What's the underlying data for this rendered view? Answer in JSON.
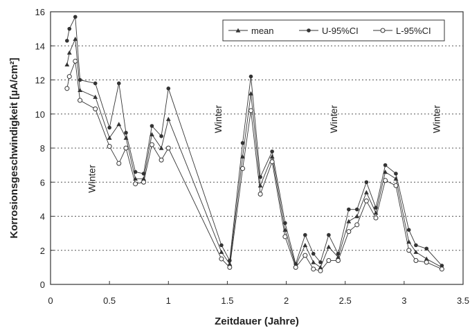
{
  "chart_data": {
    "type": "line",
    "title": "",
    "xlabel": "Zeitdauer (Jahre)",
    "ylabel": "Korrosionsgeschwindigkeit [µA/cm²]",
    "xlim": [
      0,
      3.5
    ],
    "ylim": [
      0,
      16
    ],
    "x_ticks": [
      0,
      0.5,
      1,
      1.5,
      2,
      2.5,
      3,
      3.5
    ],
    "x_tick_labels": [
      "0",
      "0.5",
      "1",
      "1.5",
      "2",
      "2.5",
      "3",
      "3.5"
    ],
    "y_ticks": [
      0,
      2,
      4,
      6,
      8,
      10,
      12,
      14,
      16
    ],
    "y_tick_labels": [
      "0",
      "2",
      "4",
      "6",
      "8",
      "10",
      "12",
      "14",
      "16"
    ],
    "grid": "horizontal-dotted",
    "legend_position": "top-right",
    "x": [
      0.14,
      0.16,
      0.21,
      0.25,
      0.38,
      0.5,
      0.58,
      0.64,
      0.72,
      0.79,
      0.86,
      0.94,
      1.0,
      1.45,
      1.52,
      1.63,
      1.7,
      1.78,
      1.88,
      1.99,
      2.08,
      2.16,
      2.23,
      2.29,
      2.36,
      2.44,
      2.53,
      2.6,
      2.68,
      2.76,
      2.84,
      2.93,
      3.04,
      3.1,
      3.19,
      3.32
    ],
    "series": [
      {
        "name": "mean",
        "marker": "triangle",
        "values": [
          12.9,
          13.6,
          14.4,
          11.4,
          11.0,
          8.6,
          9.4,
          8.6,
          6.2,
          6.2,
          8.8,
          8.0,
          9.7,
          1.9,
          1.2,
          7.5,
          11.2,
          5.8,
          7.5,
          3.2,
          1.1,
          2.3,
          1.3,
          1.0,
          2.2,
          1.6,
          3.7,
          4.0,
          5.4,
          4.2,
          6.6,
          6.2,
          2.5,
          1.9,
          1.5,
          1.0
        ]
      },
      {
        "name": "U-95%CI",
        "marker": "filled-circle",
        "values": [
          14.3,
          15.0,
          15.7,
          12.0,
          11.8,
          9.2,
          11.8,
          8.9,
          6.6,
          6.5,
          9.3,
          8.7,
          11.5,
          2.3,
          1.4,
          8.3,
          12.2,
          6.3,
          7.8,
          3.6,
          1.2,
          2.9,
          1.8,
          1.3,
          2.9,
          1.8,
          4.4,
          4.4,
          6.0,
          4.5,
          7.0,
          6.5,
          3.2,
          2.3,
          2.1,
          1.1
        ]
      },
      {
        "name": "L-95%CI",
        "marker": "open-circle",
        "values": [
          11.5,
          12.2,
          13.1,
          10.8,
          10.3,
          8.1,
          7.1,
          8.0,
          5.9,
          6.0,
          8.2,
          7.3,
          8.0,
          1.5,
          1.0,
          6.8,
          10.2,
          5.3,
          7.2,
          2.8,
          1.0,
          1.7,
          0.9,
          0.8,
          1.4,
          1.4,
          3.1,
          3.5,
          4.9,
          3.9,
          6.1,
          5.8,
          2.0,
          1.4,
          1.3,
          0.9
        ]
      }
    ],
    "annotations": [
      {
        "text": "Winter",
        "x": 0.38,
        "y": 6.2
      },
      {
        "text": "Winter",
        "x": 1.45,
        "y": 9.7
      },
      {
        "text": "Winter",
        "x": 2.43,
        "y": 9.7
      },
      {
        "text": "Winter",
        "x": 3.42,
        "y": 9.7
      }
    ]
  }
}
